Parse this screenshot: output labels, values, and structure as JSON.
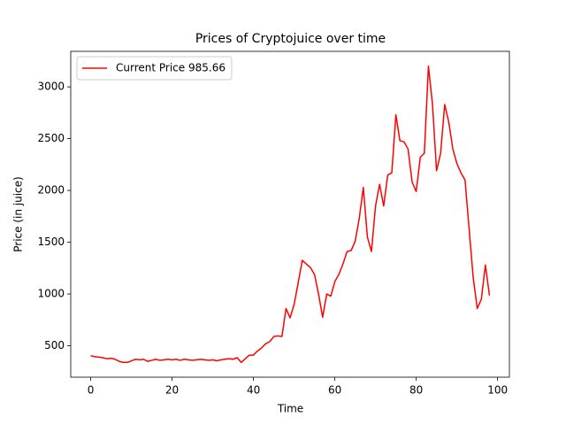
{
  "chart_data": {
    "type": "line",
    "title": "Prices of Cryptojuice over time",
    "x_label": "Time",
    "y_label": "Price (in juice)",
    "x": [
      0,
      1,
      2,
      3,
      4,
      5,
      6,
      7,
      8,
      9,
      10,
      11,
      12,
      13,
      14,
      15,
      16,
      17,
      18,
      19,
      20,
      21,
      22,
      23,
      24,
      25,
      26,
      27,
      28,
      29,
      30,
      31,
      32,
      33,
      34,
      35,
      36,
      37,
      38,
      39,
      40,
      41,
      42,
      43,
      44,
      45,
      46,
      47,
      48,
      49,
      50,
      51,
      52,
      53,
      54,
      55,
      56,
      57,
      58,
      59,
      60,
      61,
      62,
      63,
      64,
      65,
      66,
      67,
      68,
      69,
      70,
      71,
      72,
      73,
      74,
      75,
      76,
      77,
      78,
      79,
      80,
      81,
      82,
      83,
      84,
      85,
      86,
      87,
      88,
      89,
      90,
      91,
      92,
      93,
      94,
      95,
      96,
      97,
      98
    ],
    "series": [
      {
        "name": "Current Price 985.66",
        "color": "#ff0000",
        "values": [
          405,
          395,
          390,
          385,
          375,
          380,
          370,
          350,
          340,
          340,
          355,
          370,
          365,
          370,
          350,
          360,
          370,
          360,
          365,
          370,
          365,
          370,
          360,
          370,
          365,
          360,
          365,
          370,
          365,
          360,
          365,
          355,
          365,
          370,
          375,
          370,
          385,
          340,
          375,
          410,
          410,
          450,
          480,
          520,
          540,
          590,
          595,
          590,
          860,
          770,
          900,
          1110,
          1325,
          1290,
          1255,
          1190,
          1000,
          775,
          1000,
          980,
          1120,
          1190,
          1290,
          1410,
          1420,
          1510,
          1730,
          2030,
          1550,
          1410,
          1850,
          2060,
          1850,
          2150,
          2170,
          2730,
          2480,
          2470,
          2400,
          2080,
          1990,
          2320,
          2360,
          3200,
          2830,
          2190,
          2360,
          2830,
          2660,
          2400,
          2260,
          2170,
          2100,
          1630,
          1160,
          860,
          950,
          1280,
          985.66
        ]
      }
    ],
    "xlim": [
      -4.9,
      102.9
    ],
    "ylim": [
      197,
      3343
    ],
    "xticks": [
      0,
      20,
      40,
      60,
      80,
      100
    ],
    "yticks": [
      500,
      1000,
      1500,
      2000,
      2500,
      3000
    ],
    "legend": "upper left"
  }
}
